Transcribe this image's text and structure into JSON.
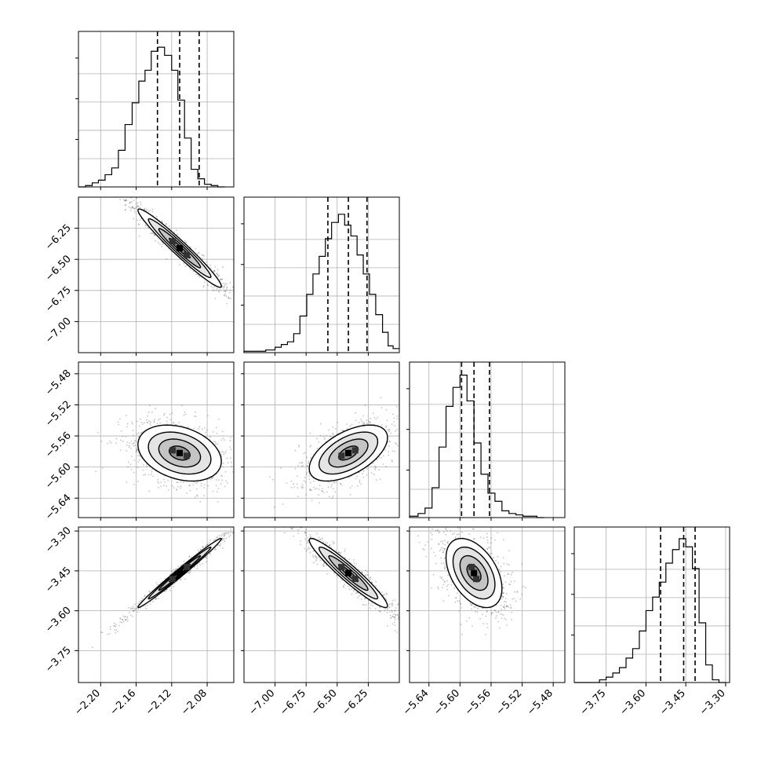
{
  "chart_data": {
    "type": "corner",
    "grid": true,
    "parameters": [
      {
        "lim": [
          -2.225,
          -2.05
        ],
        "ticks": [
          -2.2,
          -2.16,
          -2.12,
          -2.08
        ],
        "tick_labels": [
          "−2.20",
          "−2.16",
          "−2.12",
          "−2.08"
        ],
        "hist_bin_edges": [
          -2.225,
          -2.217,
          -2.2095,
          -2.2025,
          -2.195,
          -2.1875,
          -2.18,
          -2.1725,
          -2.1645,
          -2.157,
          -2.15,
          -2.143,
          -2.1355,
          -2.128,
          -2.12,
          -2.113,
          -2.1055,
          -2.098,
          -2.0905,
          -2.083,
          -2.0755,
          -2.068,
          -2.06,
          -2.05
        ],
        "hist_counts": [
          0,
          0.01,
          0.03,
          0.05,
          0.09,
          0.14,
          0.27,
          0.46,
          0.62,
          0.78,
          0.86,
          1.0,
          1.03,
          0.97,
          0.86,
          0.64,
          0.36,
          0.13,
          0.06,
          0.02,
          0.01,
          0
        ],
        "quantiles": [
          -2.136,
          -2.111,
          -2.089
        ]
      },
      {
        "lim": [
          -7.25,
          -6.0
        ],
        "ticks": [
          -7.0,
          -6.75,
          -6.5,
          -6.25
        ],
        "tick_labels": [
          "−7.00",
          "−6.75",
          "−6.50",
          "−6.25"
        ],
        "hist_bin_edges": [
          -7.25,
          -7.075,
          -7.0,
          -6.95,
          -6.9,
          -6.85,
          -6.8,
          -6.745,
          -6.695,
          -6.645,
          -6.595,
          -6.545,
          -6.49,
          -6.44,
          -6.39,
          -6.34,
          -6.29,
          -6.24,
          -6.19,
          -6.135,
          -6.09,
          -6.05,
          -6.0
        ],
        "hist_counts": [
          0.01,
          0.02,
          0.04,
          0.06,
          0.08,
          0.14,
          0.27,
          0.43,
          0.58,
          0.71,
          0.84,
          0.96,
          1.02,
          0.94,
          0.86,
          0.72,
          0.58,
          0.43,
          0.28,
          0.15,
          0.05,
          0.03
        ],
        "quantiles": [
          -6.575,
          -6.41,
          -6.26
        ]
      },
      {
        "lim": [
          -5.665,
          -5.465
        ],
        "ticks": [
          -5.64,
          -5.6,
          -5.56,
          -5.52,
          -5.48
        ],
        "tick_labels": [
          "−5.64",
          "−5.60",
          "−5.56",
          "−5.52",
          "−5.48"
        ],
        "hist_bin_edges": [
          -5.665,
          -5.654,
          -5.645,
          -5.636,
          -5.627,
          -5.618,
          -5.609,
          -5.6,
          -5.591,
          -5.582,
          -5.573,
          -5.564,
          -5.555,
          -5.546,
          -5.537,
          -5.528,
          -5.519,
          -5.51,
          -5.501,
          -5.492
        ],
        "hist_counts": [
          0.01,
          0.03,
          0.07,
          0.22,
          0.52,
          0.82,
          0.96,
          1.05,
          0.86,
          0.55,
          0.32,
          0.18,
          0.12,
          0.05,
          0.03,
          0.02,
          0.01,
          0.01,
          0
        ],
        "quantiles": [
          -5.598,
          -5.582,
          -5.562
        ]
      },
      {
        "lim": [
          -3.87,
          -3.285
        ],
        "ticks": [
          -3.75,
          -3.6,
          -3.45,
          -3.3
        ],
        "tick_labels": [
          "−3.75",
          "−3.60",
          "−3.45",
          "−3.30"
        ],
        "hist_bin_edges": [
          -3.87,
          -3.775,
          -3.75,
          -3.725,
          -3.7,
          -3.675,
          -3.65,
          -3.625,
          -3.6,
          -3.575,
          -3.55,
          -3.525,
          -3.5,
          -3.475,
          -3.45,
          -3.425,
          -3.4,
          -3.375,
          -3.35,
          -3.325,
          -3.3
        ],
        "hist_counts": [
          0,
          0.02,
          0.04,
          0.07,
          0.11,
          0.18,
          0.25,
          0.38,
          0.53,
          0.63,
          0.74,
          0.88,
          0.98,
          1.06,
          1.0,
          0.84,
          0.44,
          0.13,
          0.02,
          0
        ],
        "quantiles": [
          -3.545,
          -3.458,
          -3.415
        ]
      }
    ],
    "pairs": [
      {
        "row": 1,
        "col": 0,
        "center": [
          -2.111,
          -6.41
        ],
        "corr": -0.97
      },
      {
        "row": 2,
        "col": 0,
        "center": [
          -2.111,
          -5.582
        ],
        "corr": -0.3
      },
      {
        "row": 2,
        "col": 1,
        "center": [
          -6.41,
          -5.582
        ],
        "corr": 0.55
      },
      {
        "row": 3,
        "col": 0,
        "center": [
          -2.111,
          -3.458
        ],
        "corr": 0.99
      },
      {
        "row": 3,
        "col": 1,
        "center": [
          -6.41,
          -3.458
        ],
        "corr": -0.95
      },
      {
        "row": 3,
        "col": 2,
        "center": [
          -5.582,
          -3.458
        ],
        "corr": -0.45
      }
    ]
  }
}
